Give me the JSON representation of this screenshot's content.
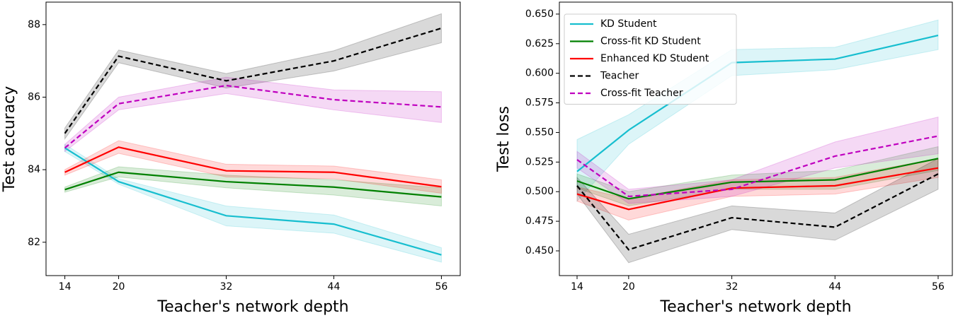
{
  "chart_data": [
    {
      "type": "line",
      "x_label": "Teacher's network depth",
      "y_label": "Test accuracy",
      "x": [
        14,
        20,
        32,
        44,
        56
      ],
      "xlim": [
        11.9,
        58.1
      ],
      "xticks": [
        14,
        20,
        32,
        44,
        56
      ],
      "ylim": [
        81.08,
        88.62
      ],
      "yticks": [
        82,
        84,
        86,
        88
      ],
      "grid": false,
      "series": [
        {
          "name": "KD Student",
          "color": "#17becf",
          "linestyle": "solid",
          "values": [
            84.6,
            83.67,
            82.73,
            82.5,
            81.65
          ],
          "lower": [
            84.5,
            83.6,
            82.45,
            82.25,
            81.45
          ],
          "upper": [
            84.7,
            83.75,
            83.0,
            82.75,
            81.85
          ]
        },
        {
          "name": "Cross-fit KD Student",
          "color": "#008000",
          "linestyle": "solid",
          "values": [
            83.45,
            83.93,
            83.67,
            83.52,
            83.25
          ],
          "lower": [
            83.38,
            83.8,
            83.5,
            83.3,
            83.0
          ],
          "upper": [
            83.52,
            84.08,
            83.85,
            83.72,
            83.5
          ]
        },
        {
          "name": "Enhanced KD Student",
          "color": "#ff0000",
          "linestyle": "solid",
          "values": [
            83.93,
            84.62,
            83.97,
            83.93,
            83.53
          ],
          "lower": [
            83.85,
            84.45,
            83.8,
            83.75,
            83.35
          ],
          "upper": [
            84.0,
            84.8,
            84.15,
            84.1,
            83.72
          ]
        },
        {
          "name": "Teacher",
          "color": "#000000",
          "linestyle": "dashed",
          "values": [
            85.0,
            87.13,
            86.45,
            87.0,
            87.9
          ],
          "lower": [
            84.85,
            86.95,
            86.25,
            86.72,
            87.5
          ],
          "upper": [
            85.15,
            87.3,
            86.65,
            87.28,
            88.3
          ]
        },
        {
          "name": "Cross-fit Teacher",
          "color": "#bf00bf",
          "linestyle": "dashed",
          "values": [
            84.6,
            85.82,
            86.32,
            85.93,
            85.73
          ],
          "lower": [
            84.5,
            85.65,
            86.1,
            85.65,
            85.3
          ],
          "upper": [
            84.7,
            86.0,
            86.55,
            86.2,
            86.15
          ]
        }
      ]
    },
    {
      "type": "line",
      "x_label": "Teacher's network depth",
      "y_label": "Test loss",
      "legend": "upper left",
      "x": [
        14,
        20,
        32,
        44,
        56
      ],
      "xlim": [
        11.94,
        57.65
      ],
      "xticks": [
        14,
        20,
        32,
        44,
        56
      ],
      "ylim": [
        0.4291,
        0.6601
      ],
      "yticks": [
        {
          "value": 0.45,
          "label": "0.450"
        },
        {
          "value": 0.475,
          "label": "0.475"
        },
        {
          "value": 0.5,
          "label": "0.500"
        },
        {
          "value": 0.525,
          "label": "0.525"
        },
        {
          "value": 0.55,
          "label": "0.550"
        },
        {
          "value": 0.575,
          "label": "0.575"
        },
        {
          "value": 0.6,
          "label": "0.600"
        },
        {
          "value": 0.625,
          "label": "0.625"
        },
        {
          "value": 0.65,
          "label": "0.650"
        }
      ],
      "grid": false,
      "series": [
        {
          "name": "KD Student",
          "color": "#17becf",
          "linestyle": "solid",
          "values": [
            0.517,
            0.552,
            0.609,
            0.612,
            0.632
          ],
          "lower": [
            0.492,
            0.54,
            0.598,
            0.603,
            0.62
          ],
          "upper": [
            0.544,
            0.565,
            0.62,
            0.622,
            0.645
          ]
        },
        {
          "name": "Cross-fit KD Student",
          "color": "#008000",
          "linestyle": "solid",
          "values": [
            0.509,
            0.494,
            0.508,
            0.51,
            0.528
          ],
          "lower": [
            0.503,
            0.488,
            0.502,
            0.502,
            0.518
          ],
          "upper": [
            0.515,
            0.5,
            0.514,
            0.518,
            0.538
          ]
        },
        {
          "name": "Enhanced KD Student",
          "color": "#ff0000",
          "linestyle": "solid",
          "values": [
            0.498,
            0.485,
            0.503,
            0.505,
            0.52
          ],
          "lower": [
            0.492,
            0.476,
            0.496,
            0.498,
            0.512
          ],
          "upper": [
            0.504,
            0.494,
            0.51,
            0.512,
            0.528
          ]
        },
        {
          "name": "Teacher",
          "color": "#000000",
          "linestyle": "dashed",
          "values": [
            0.505,
            0.451,
            0.478,
            0.47,
            0.515
          ],
          "lower": [
            0.498,
            0.44,
            0.468,
            0.459,
            0.502
          ],
          "upper": [
            0.512,
            0.464,
            0.488,
            0.482,
            0.528
          ]
        },
        {
          "name": "Cross-fit Teacher",
          "color": "#bf00bf",
          "linestyle": "dashed",
          "values": [
            0.527,
            0.496,
            0.502,
            0.53,
            0.547
          ],
          "lower": [
            0.52,
            0.49,
            0.496,
            0.52,
            0.532
          ],
          "upper": [
            0.534,
            0.502,
            0.51,
            0.542,
            0.563
          ]
        }
      ]
    }
  ]
}
